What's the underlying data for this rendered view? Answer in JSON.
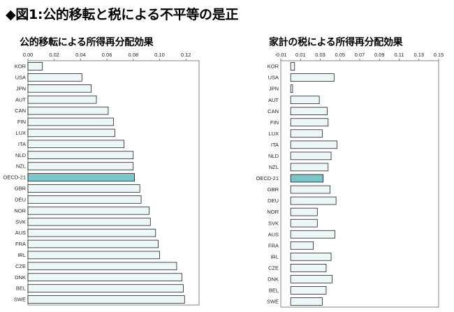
{
  "title": "◆図1:公的移転と税による不平等の是正",
  "colors": {
    "bar": "#eef7f7",
    "bar_highlight": "#7cc6ca",
    "bar_stroke": "#000000"
  },
  "chart_data": [
    {
      "type": "bar",
      "orientation": "horizontal",
      "title": "公的移転による所得再分配効果",
      "xlim": [
        0,
        0.13
      ],
      "ticks": [
        "0.00",
        "0.02",
        "0.04",
        "0.06",
        "0.08",
        "0.10",
        "0.12"
      ],
      "tick_values": [
        0,
        0.02,
        0.04,
        0.06,
        0.08,
        0.1,
        0.12
      ],
      "highlight": "OECD-21",
      "categories": [
        "KOR",
        "USA",
        "JPN",
        "AUT",
        "CAN",
        "FIN",
        "LUX",
        "ITA",
        "NLD",
        "NZL",
        "OECD-21",
        "GBR",
        "DEU",
        "NOR",
        "SVK",
        "AUS",
        "FRA",
        "IRL",
        "CZE",
        "DNK",
        "BEL",
        "SWE"
      ],
      "values": [
        0.011,
        0.041,
        0.048,
        0.052,
        0.061,
        0.065,
        0.066,
        0.073,
        0.08,
        0.08,
        0.081,
        0.085,
        0.086,
        0.092,
        0.093,
        0.097,
        0.099,
        0.1,
        0.113,
        0.117,
        0.118,
        0.119
      ]
    },
    {
      "type": "bar",
      "orientation": "horizontal",
      "title": "家計の税による所得再分配効果",
      "xlim": [
        -0.01,
        0.15
      ],
      "ticks": [
        "-0.01",
        "0.01",
        "0.03",
        "0.05",
        "0.07",
        "0.09",
        "0.11",
        "0.13",
        "0.15"
      ],
      "tick_values": [
        -0.01,
        0.01,
        0.03,
        0.05,
        0.07,
        0.09,
        0.11,
        0.13,
        0.15
      ],
      "highlight": "OECD-21",
      "categories": [
        "KOR",
        "USA",
        "JPN",
        "AUT",
        "CAN",
        "FIN",
        "LUX",
        "ITA",
        "NLD",
        "NZL",
        "OECD-21",
        "GBR",
        "DEU",
        "NOR",
        "SVK",
        "AUS",
        "FRA",
        "IRL",
        "CZE",
        "DNK",
        "BEL",
        "SWE"
      ],
      "values": [
        0.004,
        0.044,
        0.002,
        0.029,
        0.037,
        0.038,
        0.032,
        0.047,
        0.041,
        0.038,
        0.033,
        0.04,
        0.046,
        0.027,
        0.027,
        0.045,
        0.023,
        0.041,
        0.036,
        0.042,
        0.036,
        0.032
      ]
    }
  ]
}
